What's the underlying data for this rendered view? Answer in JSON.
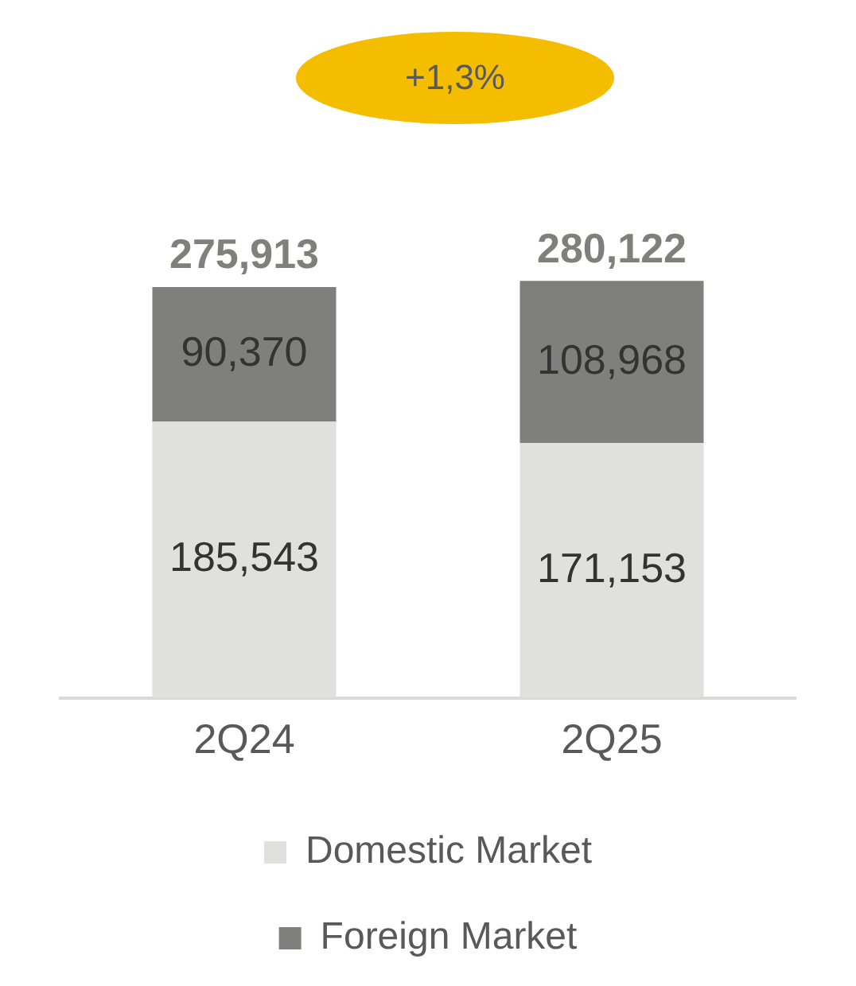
{
  "chart_data": {
    "type": "bar",
    "stacked": true,
    "categories": [
      "2Q24",
      "2Q25"
    ],
    "series": [
      {
        "name": "Domestic Market",
        "color": "#e0e0de",
        "values": [
          185543,
          171153
        ],
        "value_labels": [
          "185,543",
          "171,153"
        ]
      },
      {
        "name": "Foreign Market",
        "color": "#7f7f7d",
        "values": [
          90370,
          108968
        ],
        "value_labels": [
          "90,370",
          "108,968"
        ]
      }
    ],
    "totals": [
      "275,913",
      "280,122"
    ],
    "annotations": [
      "+1,3%"
    ],
    "legend": "bottom",
    "grid": false,
    "tick_labels": "x"
  }
}
